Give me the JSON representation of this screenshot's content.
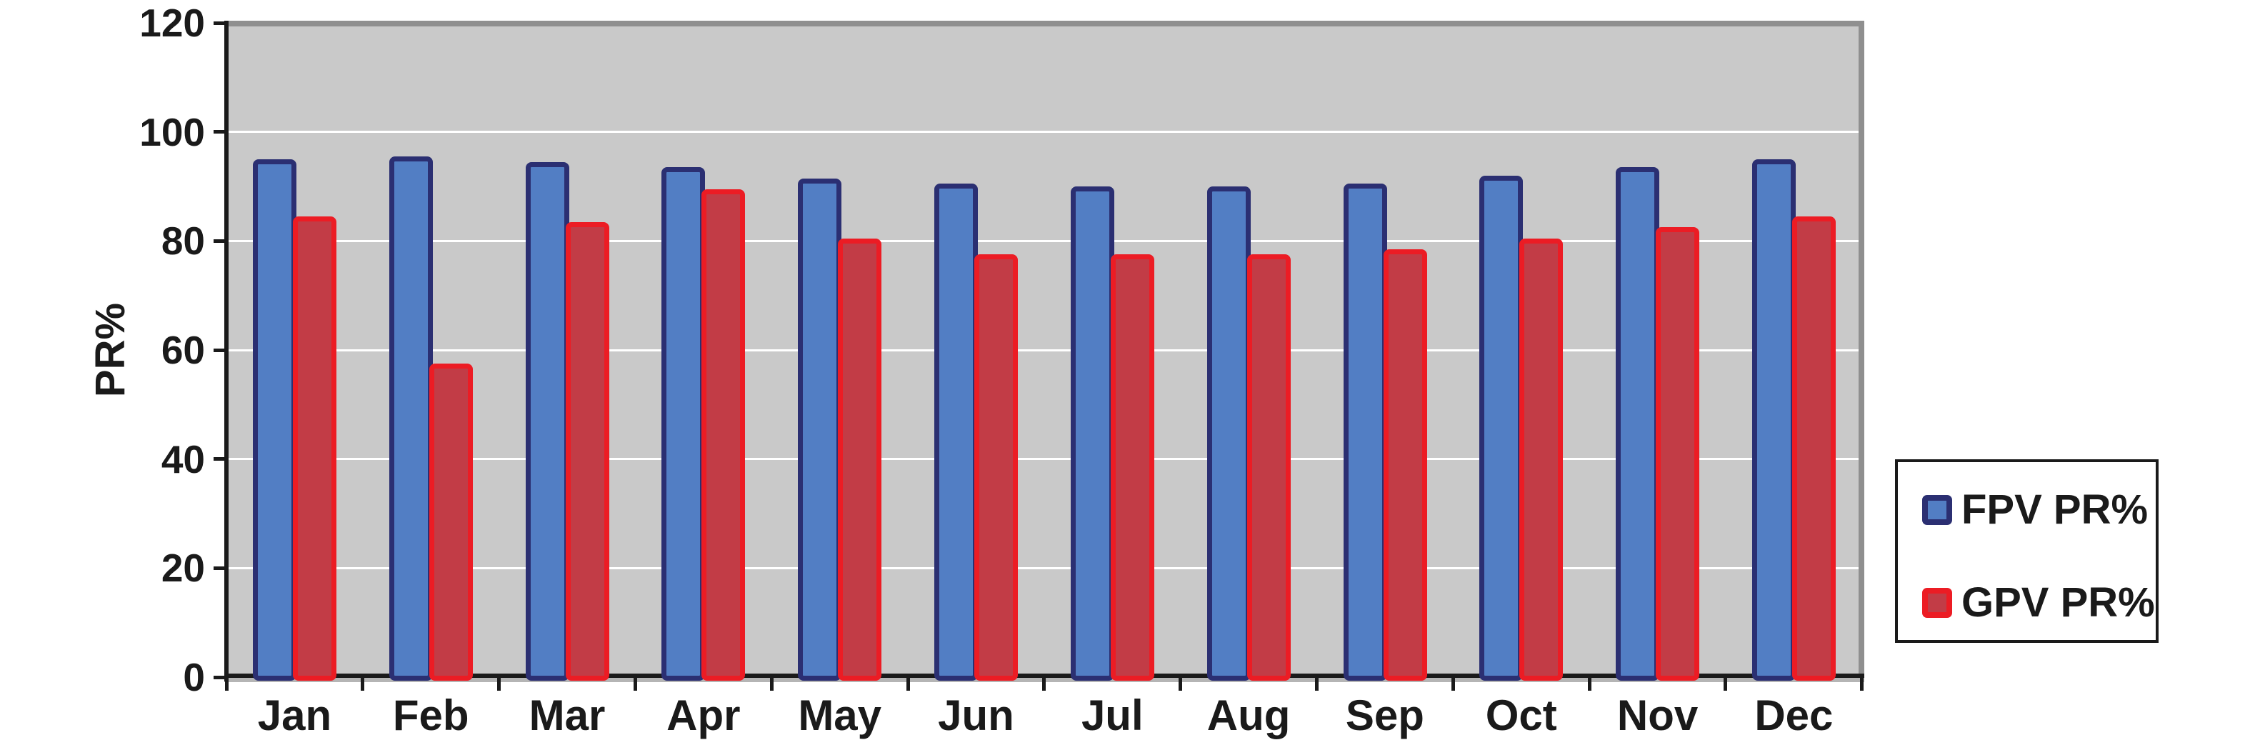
{
  "chart_data": {
    "type": "bar",
    "title": "",
    "ylabel": "PR%",
    "xlabel": "",
    "categories": [
      "Jan",
      "Feb",
      "Mar",
      "Apr",
      "May",
      "Jun",
      "Jul",
      "Aug",
      "Sep",
      "Oct",
      "Nov",
      "Dec"
    ],
    "series": [
      {
        "name": "FPV PR%",
        "fill": "#527EC4",
        "border": "#2B2F72",
        "values": [
          95,
          95.5,
          94.5,
          93.5,
          91.5,
          90.5,
          90,
          90,
          90.5,
          92,
          93.5,
          95
        ]
      },
      {
        "name": "GPV PR%",
        "fill": "#C23C46",
        "border": "#EC1C24",
        "values": [
          84.5,
          57.5,
          83.5,
          89.5,
          80.5,
          77.5,
          77.5,
          77.5,
          78.5,
          80.5,
          82.5,
          84.5
        ]
      }
    ],
    "ylim": [
      0,
      120
    ],
    "yticks": [
      0,
      20,
      40,
      60,
      80,
      100,
      120
    ],
    "grid": "horizontal white gridlines",
    "legend_position": "right-middle",
    "plot_bg": "#C9C9C9",
    "frame_color": "#8F8F8F",
    "axis_color": "#1A1A1A",
    "text_color": "#1A1A1A"
  }
}
